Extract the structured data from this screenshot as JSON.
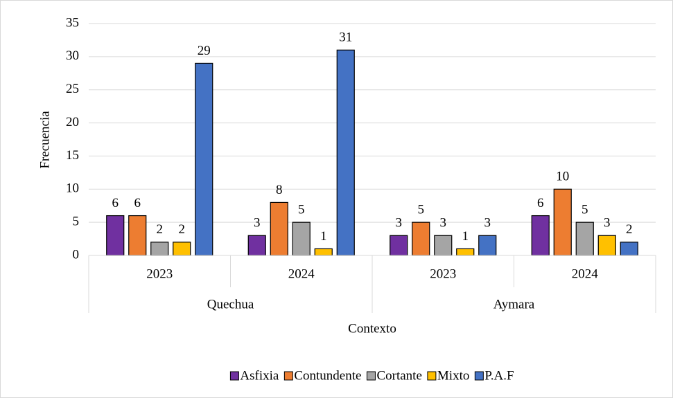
{
  "chart_data": {
    "type": "bar",
    "categories": [
      "2023",
      "2024",
      "2023",
      "2024"
    ],
    "groups": [
      "Quechua",
      "Aymara"
    ],
    "series": [
      {
        "name": "Asfixia",
        "color": "#7030a0",
        "values": [
          6,
          3,
          3,
          6
        ]
      },
      {
        "name": "Contundente",
        "color": "#ed7d31",
        "values": [
          6,
          8,
          5,
          10
        ]
      },
      {
        "name": "Cortante",
        "color": "#a5a5a5",
        "values": [
          2,
          5,
          3,
          5
        ]
      },
      {
        "name": "Mixto",
        "color": "#ffc000",
        "values": [
          2,
          1,
          1,
          3
        ]
      },
      {
        "name": "P.A.F",
        "color": "#4472c4",
        "values": [
          29,
          31,
          3,
          2
        ]
      }
    ],
    "ylabel": "Frecuencia",
    "xlabel": "Contexto",
    "ylim": [
      0,
      35
    ],
    "yticks": [
      0,
      5,
      10,
      15,
      20,
      25,
      30,
      35
    ],
    "grid": true,
    "legend": "bottom"
  }
}
